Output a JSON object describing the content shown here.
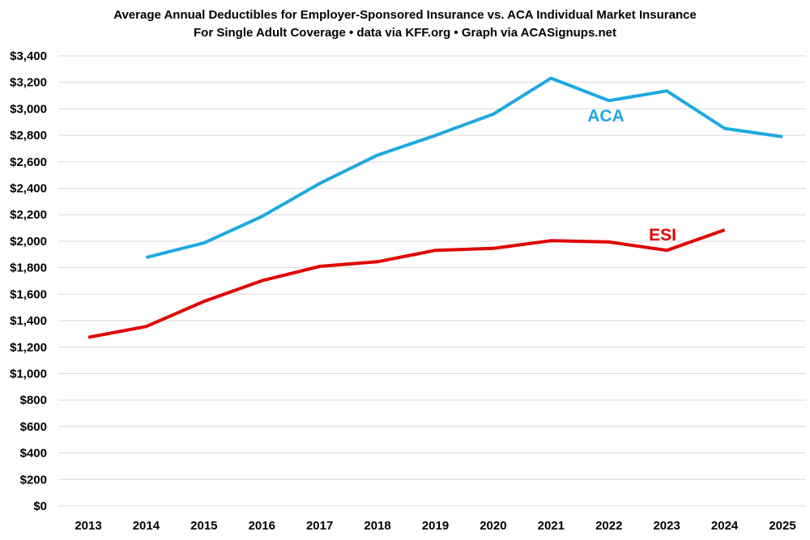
{
  "chart_data": {
    "type": "line",
    "title": "Average Annual Deductibles for Employer-Sponsored Insurance vs. ACA Individual Market Insurance",
    "subtitle": "For Single Adult Coverage • data via KFF.org • Graph via ACASignups.net",
    "xlabel": "",
    "ylabel": "",
    "categories": [
      "2013",
      "2014",
      "2015",
      "2016",
      "2017",
      "2018",
      "2019",
      "2020",
      "2021",
      "2022",
      "2023",
      "2024",
      "2025"
    ],
    "ylim": [
      0,
      3400
    ],
    "yticks": [
      0,
      200,
      400,
      600,
      800,
      1000,
      1200,
      1400,
      1600,
      1800,
      2000,
      2200,
      2400,
      2600,
      2800,
      3000,
      3200,
      3400
    ],
    "ytick_labels": [
      "$0",
      "$200",
      "$400",
      "$600",
      "$800",
      "$1,000",
      "$1,200",
      "$1,400",
      "$1,600",
      "$1,800",
      "$2,000",
      "$2,200",
      "$2,400",
      "$2,600",
      "$2,800",
      "$3,000",
      "$3,200",
      "$3,400"
    ],
    "grid": true,
    "legend": "none (direct labels)",
    "series": [
      {
        "name": "ACA",
        "color": "#1fa8e0",
        "values": [
          null,
          1877,
          1987,
          2187,
          2436,
          2650,
          2799,
          2960,
          3231,
          3062,
          3135,
          2852,
          2789
        ]
      },
      {
        "name": "ESI",
        "color": "#e00000",
        "values": [
          1274,
          1356,
          1545,
          1702,
          1810,
          1845,
          1931,
          1946,
          2004,
          1994,
          1931,
          2085,
          null
        ]
      }
    ]
  }
}
